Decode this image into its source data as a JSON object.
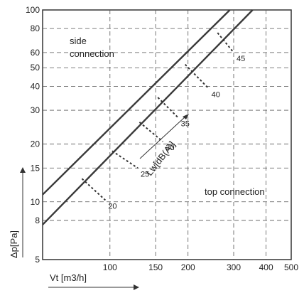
{
  "chart_data": {
    "type": "line",
    "xlabel": "Vt [m3/h]",
    "ylabel": "Δp[Pa]",
    "x_scale": "log",
    "y_scale": "log",
    "xlim": [
      55,
      500
    ],
    "ylim": [
      5,
      100
    ],
    "x_ticks": [
      100,
      150,
      200,
      300,
      400,
      500
    ],
    "y_ticks": [
      5,
      8,
      10,
      15,
      20,
      30,
      40,
      50,
      60,
      80,
      100
    ],
    "grid": true,
    "series": [
      {
        "name": "side connection",
        "points": [
          [
            55,
            10.9
          ],
          [
            290,
            100
          ]
        ]
      },
      {
        "name": "top connection",
        "points": [
          [
            55,
            7.6
          ],
          [
            355,
            100
          ]
        ]
      }
    ],
    "sound_level_lines": {
      "label": "Lw[dB(A)]",
      "marks": [
        {
          "label": "20",
          "side_point": [
            78,
            13.2
          ],
          "top_point": [
            96,
            10.2
          ]
        },
        {
          "label": "25",
          "side_point": [
            102,
            18.4
          ],
          "top_point": [
            128,
            15.0
          ]
        },
        {
          "label": "30",
          "side_point": [
            130,
            26.0
          ],
          "top_point": [
            160,
            20.6
          ]
        },
        {
          "label": "35",
          "side_point": [
            153,
            35.0
          ],
          "top_point": [
            183,
            27.5
          ]
        },
        {
          "label": "40",
          "side_point": [
            195,
            52.0
          ],
          "top_point": [
            240,
            39.0
          ]
        },
        {
          "label": "45",
          "side_point": [
            260,
            76.0
          ],
          "top_point": [
            300,
            60.0
          ]
        }
      ]
    },
    "annotations": {
      "side_line1": "side",
      "side_line2": "connection",
      "top": "top connection"
    }
  }
}
